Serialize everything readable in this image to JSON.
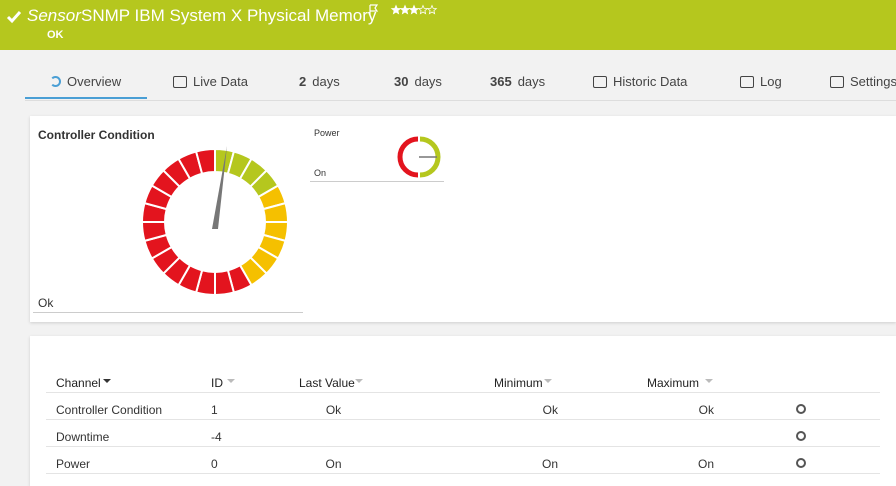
{
  "header": {
    "prefix": "Sensor",
    "title": "SNMP IBM System X Physical Memory",
    "status": "OK"
  },
  "tabs": [
    {
      "text": "Overview"
    },
    {
      "text": "Live Data"
    },
    {
      "count": 2,
      "unit": "days"
    },
    {
      "count": 30,
      "unit": "days"
    },
    {
      "count": 365,
      "unit": "days"
    },
    {
      "text": "Historic Data"
    },
    {
      "text": "Log"
    },
    {
      "text": "Settings"
    }
  ],
  "gauges": [
    {
      "title": "Controller Condition",
      "value_label": "Ok"
    },
    {
      "title": "Power",
      "value_label": "On"
    }
  ],
  "table": {
    "headers": [
      "Channel",
      "ID",
      "Last Value",
      "Minimum",
      "Maximum"
    ],
    "rows": [
      {
        "channel": "Controller Condition",
        "id": 1,
        "last": "Ok",
        "min": "Ok",
        "max": "Ok"
      },
      {
        "channel": "Downtime",
        "id": -4
      },
      {
        "channel": "Power",
        "id": 0,
        "last": "On",
        "min": "On",
        "max": "On"
      }
    ]
  }
}
